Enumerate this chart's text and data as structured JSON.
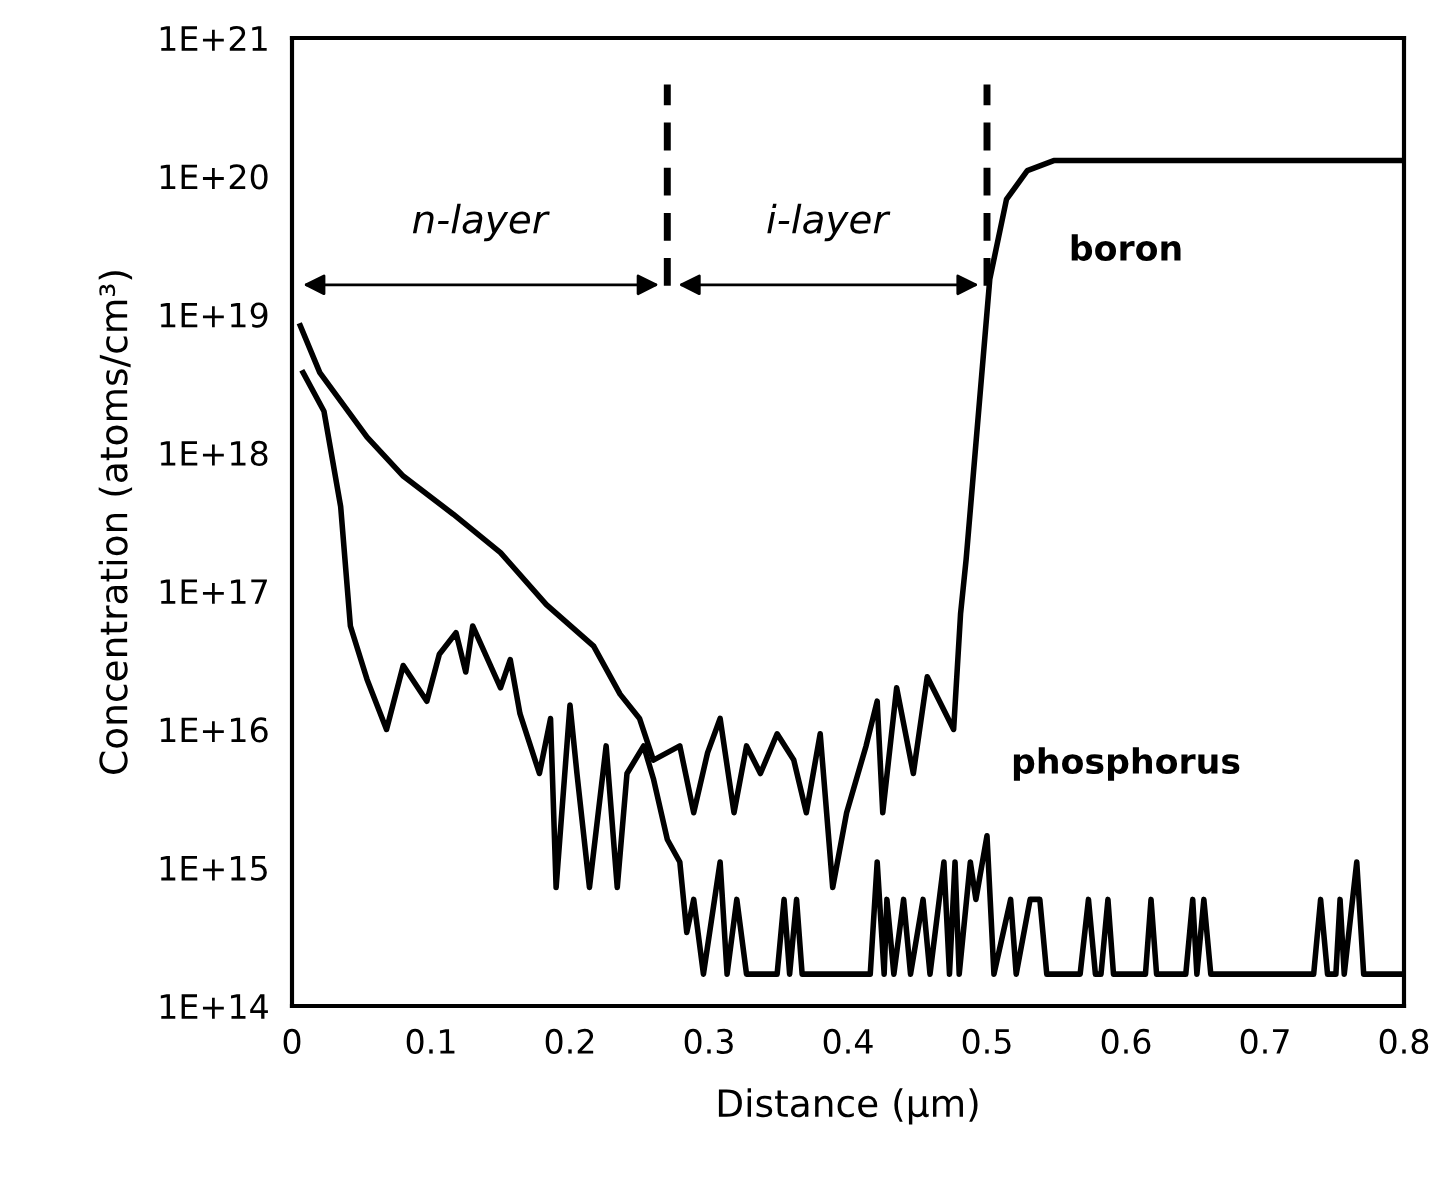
{
  "chart_data": {
    "type": "line",
    "xlabel": "Distance (µm)",
    "ylabel": "Concentration (atoms/cm³)",
    "log": "y",
    "grid": false,
    "legend": false,
    "marker": "none",
    "line_style": "solid",
    "xlim": [
      0,
      0.8
    ],
    "xticks": [
      0,
      0.1,
      0.2,
      0.3,
      0.4,
      0.5,
      0.6,
      0.7,
      0.8
    ],
    "ylim": [
      100000000000000.0,
      1e+21
    ],
    "yticks": [
      {
        "value": 100000000000000.0,
        "label": "1E+14"
      },
      {
        "value": 1000000000000000.0,
        "label": "1E+15"
      },
      {
        "value": 1e+16,
        "label": "1E+16"
      },
      {
        "value": 1e+17,
        "label": "1E+17"
      },
      {
        "value": 1e+18,
        "label": "1E+18"
      },
      {
        "value": 1e+19,
        "label": "1E+19"
      },
      {
        "value": 1e+20,
        "label": "1E+20"
      },
      {
        "value": 1e+21,
        "label": "1E+21"
      }
    ],
    "ref_lines": [
      {
        "axis": "x",
        "value": 0.27,
        "line_style": "dashed",
        "color": "#000000"
      },
      {
        "axis": "x",
        "value": 0.5,
        "line_style": "dashed",
        "color": "#000000"
      }
    ],
    "annotations": [
      "n-layer",
      "i-layer"
    ],
    "series": [
      {
        "name": "boron",
        "color": "#000000",
        "x": [
          0.006,
          0.02,
          0.054,
          0.08,
          0.116,
          0.15,
          0.183,
          0.217,
          0.236,
          0.25,
          0.26,
          0.279,
          0.289,
          0.299,
          0.308,
          0.318,
          0.327,
          0.337,
          0.349,
          0.361,
          0.37,
          0.38,
          0.389,
          0.399,
          0.413,
          0.421,
          0.425,
          0.435,
          0.447,
          0.457,
          0.476,
          0.481,
          0.485,
          0.502,
          0.514,
          0.529,
          0.548,
          0.8
        ],
        "values": [
          8.3e+18,
          3.8e+18,
          1.3e+18,
          6.8e+17,
          3.6e+17,
          1.9e+17,
          8e+16,
          4e+16,
          1.8e+16,
          1.2e+16,
          6000000000000000.0,
          7600000000000000.0,
          2500000000000000.0,
          6800000000000000.0,
          1.2e+16,
          2500000000000000.0,
          7600000000000000.0,
          4800000000000000.0,
          9300000000000000.0,
          6000000000000000.0,
          2500000000000000.0,
          9300000000000000.0,
          720000000000000.0,
          2500000000000000.0,
          7600000000000000.0,
          1.6e+16,
          2500000000000000.0,
          2e+16,
          4800000000000000.0,
          2.4e+16,
          1e+16,
          6.9e+16,
          1.7e+17,
          1.8e+19,
          6.8e+19,
          1.1e+20,
          1.3e+20,
          1.3e+20
        ]
      },
      {
        "name": "phosphorus",
        "color": "#000000",
        "x": [
          0.008,
          0.023,
          0.035,
          0.042,
          0.054,
          0.068,
          0.08,
          0.097,
          0.106,
          0.118,
          0.125,
          0.13,
          0.15,
          0.157,
          0.164,
          0.178,
          0.186,
          0.19,
          0.2,
          0.205,
          0.214,
          0.226,
          0.234,
          0.241,
          0.253,
          0.26,
          0.27,
          0.279,
          0.284,
          0.289,
          0.296,
          0.308,
          0.313,
          0.32,
          0.327,
          0.349,
          0.354,
          0.358,
          0.363,
          0.367,
          0.416,
          0.421,
          0.426,
          0.428,
          0.433,
          0.44,
          0.445,
          0.454,
          0.459,
          0.469,
          0.473,
          0.477,
          0.48,
          0.488,
          0.492,
          0.5,
          0.505,
          0.517,
          0.521,
          0.531,
          0.538,
          0.543,
          0.567,
          0.573,
          0.578,
          0.582,
          0.587,
          0.591,
          0.614,
          0.618,
          0.622,
          0.643,
          0.648,
          0.651,
          0.656,
          0.661,
          0.735,
          0.74,
          0.745,
          0.751,
          0.754,
          0.757,
          0.766,
          0.771,
          0.8
        ],
        "values": [
          3.8e+18,
          2e+18,
          4.1e+17,
          5.6e+16,
          2.3e+16,
          1e+16,
          2.9e+16,
          1.6e+16,
          3.5e+16,
          5e+16,
          2.6e+16,
          5.6e+16,
          2e+16,
          3.2e+16,
          1.3e+16,
          4800000000000000.0,
          1.2e+16,
          720000000000000.0,
          1.5e+16,
          4800000000000000.0,
          720000000000000.0,
          7600000000000000.0,
          720000000000000.0,
          4800000000000000.0,
          7600000000000000.0,
          4400000000000000.0,
          1600000000000000.0,
          1100000000000000.0,
          340000000000000.0,
          590000000000000.0,
          170000000000000.0,
          1100000000000000.0,
          170000000000000.0,
          590000000000000.0,
          170000000000000.0,
          170000000000000.0,
          590000000000000.0,
          170000000000000.0,
          590000000000000.0,
          170000000000000.0,
          170000000000000.0,
          1100000000000000.0,
          170000000000000.0,
          590000000000000.0,
          170000000000000.0,
          590000000000000.0,
          170000000000000.0,
          590000000000000.0,
          170000000000000.0,
          1100000000000000.0,
          170000000000000.0,
          1100000000000000.0,
          170000000000000.0,
          1100000000000000.0,
          590000000000000.0,
          1700000000000000.0,
          170000000000000.0,
          590000000000000.0,
          170000000000000.0,
          590000000000000.0,
          590000000000000.0,
          170000000000000.0,
          170000000000000.0,
          590000000000000.0,
          170000000000000.0,
          170000000000000.0,
          590000000000000.0,
          170000000000000.0,
          170000000000000.0,
          590000000000000.0,
          170000000000000.0,
          170000000000000.0,
          590000000000000.0,
          170000000000000.0,
          590000000000000.0,
          170000000000000.0,
          170000000000000.0,
          590000000000000.0,
          170000000000000.0,
          170000000000000.0,
          590000000000000.0,
          170000000000000.0,
          1100000000000000.0,
          170000000000000.0,
          170000000000000.0
        ]
      }
    ]
  }
}
